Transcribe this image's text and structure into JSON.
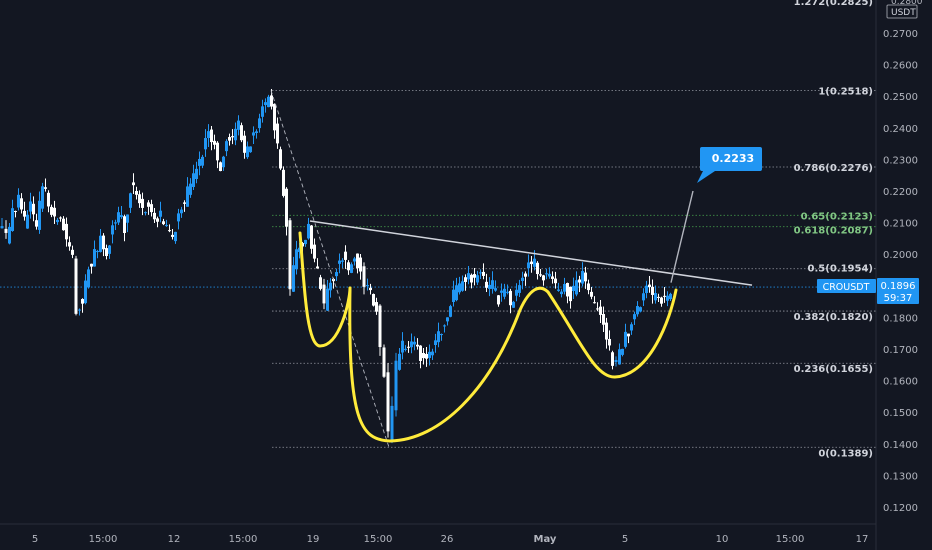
{
  "chart_data": {
    "type": "candlestick",
    "symbol": "CROUSDT",
    "currency_label": "USDT",
    "last_price": "0.1896",
    "countdown": "59:37",
    "target_label": "0.2233",
    "y_axis": {
      "ticks": [
        "0.2700",
        "0.2600",
        "0.2500",
        "0.2400",
        "0.2300",
        "0.2200",
        "0.2100",
        "0.2000",
        "0.1900",
        "0.1800",
        "0.1700",
        "0.1600",
        "0.1500",
        "0.1400",
        "0.1300",
        "0.1200"
      ],
      "top_tick": "0.2800",
      "range": [
        0.1175,
        0.2825
      ]
    },
    "x_axis": {
      "ticks": [
        "5",
        "15:00",
        "12",
        "15:00",
        "19",
        "15:00",
        "26",
        "May",
        "5",
        "10",
        "15:00",
        "17"
      ]
    },
    "fib_levels": [
      {
        "label": "1.272(0.2825)",
        "value": 0.2825,
        "color": "#d1d4dc"
      },
      {
        "label": "1(0.2518)",
        "value": 0.2518,
        "color": "#d1d4dc"
      },
      {
        "label": "0.786(0.2276)",
        "value": 0.2276,
        "color": "#d1d4dc"
      },
      {
        "label": "0.65(0.2123)",
        "value": 0.2123,
        "color": "#81c784"
      },
      {
        "label": "0.618(0.2087)",
        "value": 0.2087,
        "color": "#81c784"
      },
      {
        "label": "0.5(0.1954)",
        "value": 0.1954,
        "color": "#d1d4dc"
      },
      {
        "label": "0.382(0.1820)",
        "value": 0.182,
        "color": "#d1d4dc"
      },
      {
        "label": "0.236(0.1655)",
        "value": 0.1655,
        "color": "#d1d4dc"
      },
      {
        "label": "0(0.1389)",
        "value": 0.1389,
        "color": "#d1d4dc"
      }
    ],
    "price_path": [
      [
        0,
        0.21
      ],
      [
        8,
        0.205
      ],
      [
        14,
        0.213
      ],
      [
        20,
        0.218
      ],
      [
        26,
        0.21
      ],
      [
        32,
        0.215
      ],
      [
        38,
        0.208
      ],
      [
        44,
        0.222
      ],
      [
        50,
        0.216
      ],
      [
        56,
        0.211
      ],
      [
        62,
        0.213
      ],
      [
        68,
        0.204
      ],
      [
        74,
        0.2
      ],
      [
        78,
        0.182
      ],
      [
        84,
        0.186
      ],
      [
        90,
        0.196
      ],
      [
        96,
        0.2
      ],
      [
        102,
        0.205
      ],
      [
        108,
        0.2
      ],
      [
        114,
        0.209
      ],
      [
        120,
        0.213
      ],
      [
        126,
        0.208
      ],
      [
        132,
        0.221
      ],
      [
        138,
        0.219
      ],
      [
        144,
        0.214
      ],
      [
        150,
        0.216
      ],
      [
        156,
        0.211
      ],
      [
        162,
        0.212
      ],
      [
        168,
        0.209
      ],
      [
        174,
        0.205
      ],
      [
        180,
        0.213
      ],
      [
        186,
        0.217
      ],
      [
        192,
        0.222
      ],
      [
        198,
        0.226
      ],
      [
        204,
        0.232
      ],
      [
        210,
        0.238
      ],
      [
        216,
        0.234
      ],
      [
        222,
        0.228
      ],
      [
        228,
        0.237
      ],
      [
        234,
        0.236
      ],
      [
        240,
        0.242
      ],
      [
        246,
        0.232
      ],
      [
        252,
        0.236
      ],
      [
        258,
        0.24
      ],
      [
        264,
        0.246
      ],
      [
        270,
        0.251
      ],
      [
        276,
        0.241
      ],
      [
        282,
        0.228
      ],
      [
        288,
        0.21
      ],
      [
        292,
        0.19
      ],
      [
        298,
        0.2
      ],
      [
        304,
        0.204
      ],
      [
        310,
        0.209
      ],
      [
        316,
        0.198
      ],
      [
        322,
        0.19
      ],
      [
        326,
        0.184
      ],
      [
        332,
        0.191
      ],
      [
        338,
        0.195
      ],
      [
        344,
        0.199
      ],
      [
        350,
        0.196
      ],
      [
        356,
        0.2
      ],
      [
        362,
        0.195
      ],
      [
        366,
        0.19
      ],
      [
        372,
        0.189
      ],
      [
        378,
        0.182
      ],
      [
        382,
        0.172
      ],
      [
        386,
        0.162
      ],
      [
        390,
        0.142
      ],
      [
        394,
        0.15
      ],
      [
        398,
        0.165
      ],
      [
        404,
        0.171
      ],
      [
        410,
        0.17
      ],
      [
        416,
        0.172
      ],
      [
        422,
        0.168
      ],
      [
        428,
        0.166
      ],
      [
        434,
        0.17
      ],
      [
        440,
        0.174
      ],
      [
        446,
        0.179
      ],
      [
        452,
        0.185
      ],
      [
        458,
        0.189
      ],
      [
        464,
        0.191
      ],
      [
        470,
        0.193
      ],
      [
        476,
        0.192
      ],
      [
        482,
        0.195
      ],
      [
        488,
        0.188
      ],
      [
        494,
        0.19
      ],
      [
        500,
        0.186
      ],
      [
        506,
        0.189
      ],
      [
        512,
        0.185
      ],
      [
        518,
        0.188
      ],
      [
        524,
        0.192
      ],
      [
        530,
        0.196
      ],
      [
        536,
        0.197
      ],
      [
        542,
        0.193
      ],
      [
        548,
        0.194
      ],
      [
        554,
        0.192
      ],
      [
        560,
        0.188
      ],
      [
        566,
        0.19
      ],
      [
        572,
        0.187
      ],
      [
        578,
        0.19
      ],
      [
        584,
        0.193
      ],
      [
        590,
        0.189
      ],
      [
        596,
        0.184
      ],
      [
        602,
        0.18
      ],
      [
        608,
        0.173
      ],
      [
        614,
        0.166
      ],
      [
        618,
        0.167
      ],
      [
        624,
        0.172
      ],
      [
        630,
        0.176
      ],
      [
        636,
        0.182
      ],
      [
        642,
        0.185
      ],
      [
        648,
        0.19
      ],
      [
        654,
        0.186
      ],
      [
        660,
        0.187
      ],
      [
        666,
        0.185
      ],
      [
        672,
        0.189
      ]
    ],
    "neckline": [
      [
        310,
        0.2105
      ],
      [
        752,
        0.1902
      ]
    ],
    "target_line": [
      [
        671,
        0.191
      ],
      [
        693,
        0.22
      ]
    ],
    "drop_line": [
      [
        271,
        0.2518
      ],
      [
        389,
        0.1389
      ]
    ],
    "current_line": 0.1896
  }
}
